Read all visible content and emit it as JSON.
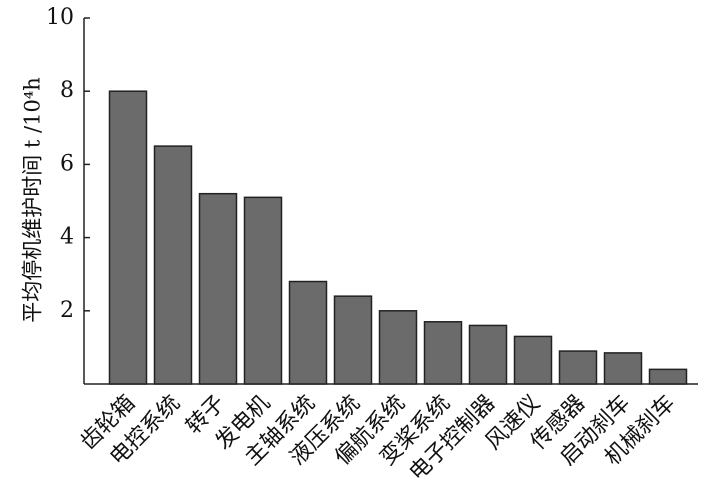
{
  "chart_data": {
    "type": "bar",
    "y_label": "平均停机维护时间 t /10⁴h",
    "categories": [
      "齿轮箱",
      "电控系统",
      "转子",
      "发电机",
      "主轴系统",
      "液压系统",
      "偏航系统",
      "变桨系统",
      "电子控制器",
      "风速仪",
      "传感器",
      "启动刹车",
      "机械刹车"
    ],
    "values": [
      8.0,
      6.5,
      5.2,
      5.1,
      2.8,
      2.4,
      2.0,
      1.7,
      1.6,
      1.3,
      0.9,
      0.85,
      0.4
    ],
    "color": "#6b6b6b",
    "ylim": [
      0,
      10
    ],
    "yticks": [
      2,
      4,
      6,
      8,
      10
    ],
    "grid": false
  }
}
